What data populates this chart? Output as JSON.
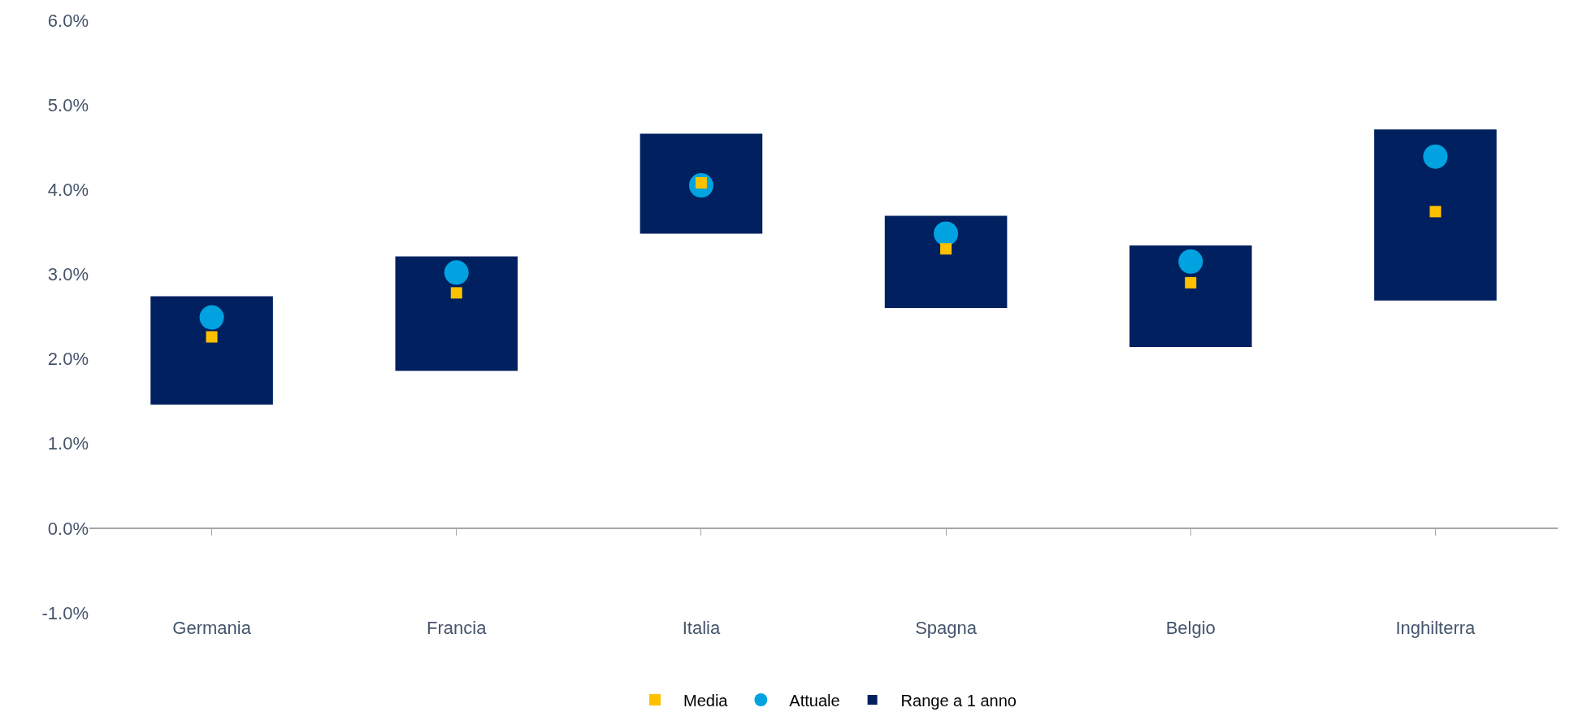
{
  "chart_data": {
    "type": "bar",
    "categories": [
      "Germania",
      "Francia",
      "Italia",
      "Spagna",
      "Belgio",
      "Inghilterra"
    ],
    "series": [
      {
        "name": "Range a 1 anno",
        "color": "#002060",
        "base": [
          1.46,
          1.86,
          3.48,
          2.6,
          2.14,
          2.69
        ],
        "values": [
          1.28,
          1.35,
          1.18,
          1.09,
          1.2,
          2.02
        ]
      },
      {
        "name": "Attuale",
        "type": "scatter",
        "marker": "circle",
        "color": "#00a3e0",
        "values": [
          2.49,
          3.02,
          4.05,
          3.48,
          3.15,
          4.39
        ]
      },
      {
        "name": "Media",
        "type": "scatter",
        "marker": "square",
        "color": "#ffc000",
        "values": [
          2.26,
          2.78,
          4.08,
          3.3,
          2.9,
          3.74
        ]
      }
    ],
    "ylim": [
      -1,
      6
    ],
    "yticks": [
      {
        "value": -1,
        "label": "-1.0%"
      },
      {
        "value": 0,
        "label": "0.0%"
      },
      {
        "value": 1,
        "label": "1.0%"
      },
      {
        "value": 2,
        "label": "2.0%"
      },
      {
        "value": 3,
        "label": "3.0%"
      },
      {
        "value": 4,
        "label": "4.0%"
      },
      {
        "value": 5,
        "label": "5.0%"
      },
      {
        "value": 6,
        "label": "6.0%"
      }
    ],
    "legend": "bottom"
  }
}
